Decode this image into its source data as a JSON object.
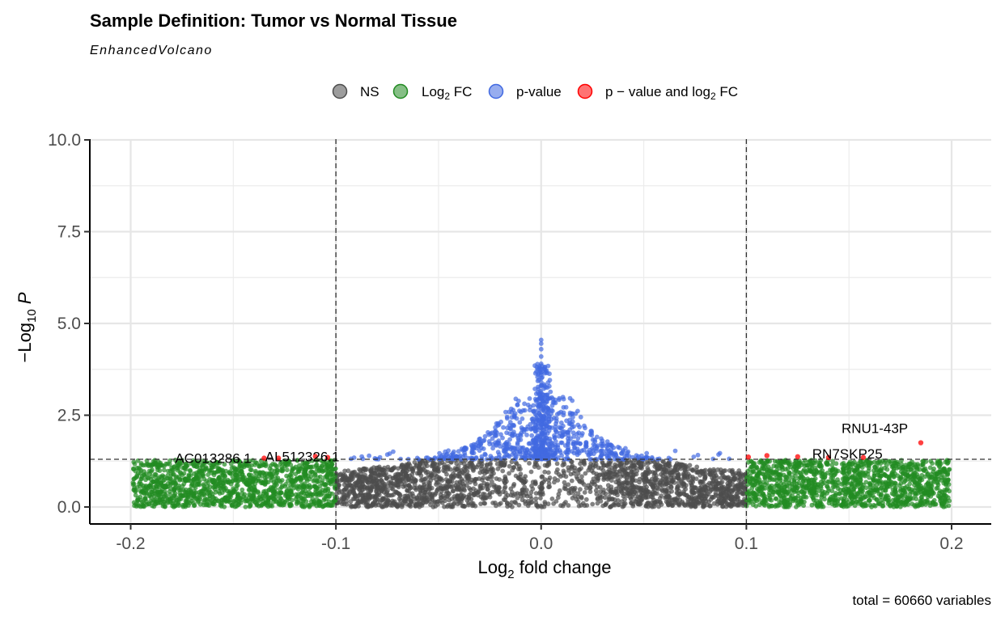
{
  "chart_data": {
    "type": "scatter",
    "title": "Sample Definition: Tumor vs Normal Tissue",
    "subtitle": "EnhancedVolcano",
    "xlabel": {
      "main": "Log",
      "sub": "2",
      "rest": " fold change"
    },
    "ylabel": {
      "prefix": "−Log",
      "sub": "10",
      "italic": "P"
    },
    "caption": "total = 60660 variables",
    "xlim": [
      -0.222,
      0.222
    ],
    "ylim": [
      -0.45,
      10.0
    ],
    "x_ticks": [
      {
        "value": -0.2,
        "label": "-0.2"
      },
      {
        "value": -0.1,
        "label": "-0.1"
      },
      {
        "value": 0.0,
        "label": "0.0"
      },
      {
        "value": 0.1,
        "label": "0.1"
      },
      {
        "value": 0.2,
        "label": "0.2"
      }
    ],
    "y_ticks": [
      {
        "value": 0.0,
        "label": "0.0"
      },
      {
        "value": 2.5,
        "label": "2.5"
      },
      {
        "value": 5.0,
        "label": "5.0"
      },
      {
        "value": 7.5,
        "label": "7.5"
      },
      {
        "value": 10.0,
        "label": "10.0"
      }
    ],
    "fc_cutoff": 0.1,
    "p_cutoff_neglog10": 1.3,
    "grid": true,
    "legend_position": "top",
    "legend": [
      {
        "key": "NS",
        "label": "NS",
        "color": "#4d4d4d"
      },
      {
        "key": "FC",
        "label_main": "Log",
        "label_sub": "2",
        "label_rest": " FC",
        "color": "#228b22"
      },
      {
        "key": "P",
        "label": "p-value",
        "color": "#4169e1"
      },
      {
        "key": "FCP",
        "label_main": "p − value and log",
        "label_sub": "2",
        "label_rest": " FC",
        "color": "#ff0000"
      }
    ],
    "cloud": {
      "description_free": true,
      "total_variables": 60660,
      "center_peak_y": 4.55,
      "ns_max_y": 1.3,
      "fc_region_max_y": 1.3
    },
    "labeled_points": [
      {
        "gene": "AC013286.1",
        "x": -0.135,
        "y": 1.33
      },
      {
        "gene": "AL512326.1",
        "x": -0.11,
        "y": 1.38
      },
      {
        "gene": "RN7SKP25",
        "x": 0.125,
        "y": 1.37
      },
      {
        "gene": "RNU1-43P",
        "x": 0.185,
        "y": 1.75
      }
    ],
    "highlight_points": [
      {
        "x": -0.135,
        "y": 1.33
      },
      {
        "x": -0.128,
        "y": 1.33
      },
      {
        "x": -0.11,
        "y": 1.38
      },
      {
        "x": -0.104,
        "y": 1.35
      },
      {
        "x": 0.101,
        "y": 1.36
      },
      {
        "x": 0.11,
        "y": 1.4
      },
      {
        "x": 0.125,
        "y": 1.37
      },
      {
        "x": 0.14,
        "y": 1.35
      },
      {
        "x": 0.157,
        "y": 1.35
      },
      {
        "x": 0.185,
        "y": 1.75
      }
    ]
  }
}
